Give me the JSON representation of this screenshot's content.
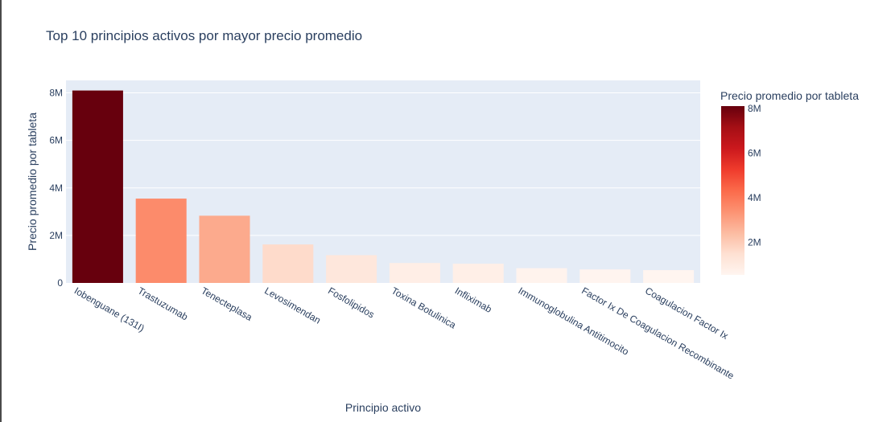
{
  "chart_data": {
    "type": "bar",
    "title": "Top 10 principios activos por mayor precio promedio",
    "xlabel": "Principio activo",
    "ylabel": "Precio promedio por tableta",
    "categories": [
      "Iobenguane (131I)",
      "Trastuzumab",
      "Tenecteplasa",
      "Levosimendan",
      "Fosfolipidos",
      "Toxina Botulinica",
      "Infliximab",
      "Immunoglobulina Antitimocito",
      "Factor Ix De Coagulacion Recombinante",
      "Coagulacion Factor Ix"
    ],
    "values": [
      8100000,
      3550000,
      2830000,
      1620000,
      1170000,
      840000,
      810000,
      620000,
      570000,
      540000
    ],
    "ylim": [
      0,
      8526316
    ],
    "yticks": [
      0,
      2000000,
      4000000,
      6000000,
      8000000
    ],
    "ytick_labels": [
      "0",
      "2M",
      "4M",
      "6M",
      "8M"
    ],
    "grid": true,
    "colorbar": {
      "title": "Precio promedio por tableta",
      "colorscale": "Reds",
      "cmin": 540000,
      "cmax": 8100000,
      "ticks": [
        2000000,
        4000000,
        6000000,
        8000000
      ],
      "tick_labels": [
        "2M",
        "4M",
        "6M",
        "8M"
      ],
      "colors": [
        "#fff5f0",
        "#fee0d2",
        "#fcbba1",
        "#fc9272",
        "#fb6a4a",
        "#ef3b2c",
        "#cb181d",
        "#a50f15",
        "#67000d"
      ]
    },
    "colors": {
      "plot_background": "#e5ecf6",
      "text": "#2a3f5f"
    }
  }
}
